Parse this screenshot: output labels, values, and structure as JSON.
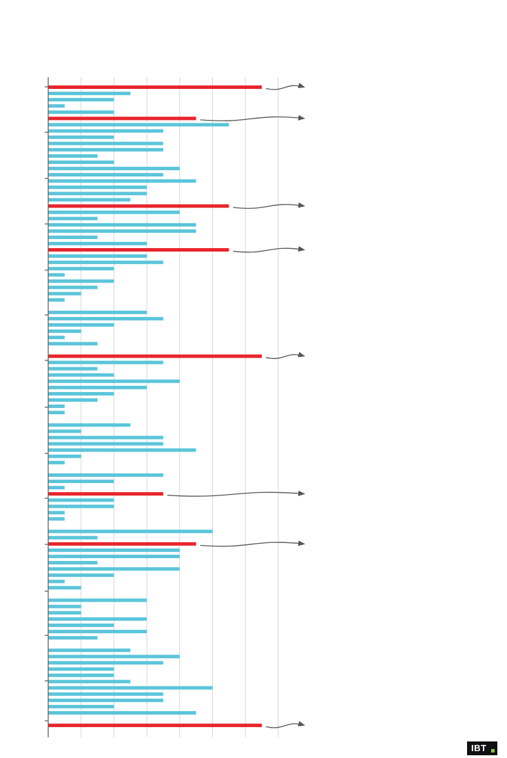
{
  "brand": {
    "logo_text": "IBT",
    "accent": "#8dc63f"
  },
  "colors": {
    "highlight": "#e8242b",
    "normal": "#5bc5da",
    "grid": "#d6d6d6",
    "axis": "#555555",
    "arrow": "#555555"
  },
  "chart_data": {
    "type": "bar",
    "orientation": "horizontal",
    "title": "",
    "xlabel": "",
    "ylabel": "",
    "xlim": [
      0,
      7
    ],
    "grid": true,
    "legend": "none",
    "values": [
      6.5,
      2.5,
      2,
      0.5,
      2,
      4.5,
      5.5,
      3.5,
      2,
      3.5,
      3.5,
      1.5,
      2,
      4,
      3.5,
      4.5,
      3,
      3,
      2.5,
      5.5,
      4,
      1.5,
      4.5,
      4.5,
      1.5,
      3,
      5.5,
      3,
      3.5,
      2,
      0.5,
      2,
      1.5,
      1,
      0.5,
      null,
      3,
      3.5,
      2,
      1,
      0.5,
      1.5,
      null,
      6.5,
      3.5,
      1.5,
      2,
      4,
      3,
      2,
      1.5,
      0.5,
      0.5,
      null,
      2.5,
      1,
      3.5,
      3.5,
      4.5,
      1,
      0.5,
      null,
      3.5,
      2,
      0.5,
      3.5,
      2,
      2,
      0.5,
      0.5,
      null,
      5,
      1.5,
      4.5,
      4,
      4,
      1.5,
      4,
      2,
      0.5,
      1,
      null,
      3,
      1,
      1,
      3,
      2,
      3,
      1.5,
      null,
      2.5,
      4,
      3.5,
      2,
      2,
      2.5,
      5,
      3.5,
      3.5,
      2,
      4.5,
      null,
      6.5
    ],
    "highlighted": [
      0,
      5,
      19,
      26,
      43,
      65,
      73,
      102
    ]
  }
}
